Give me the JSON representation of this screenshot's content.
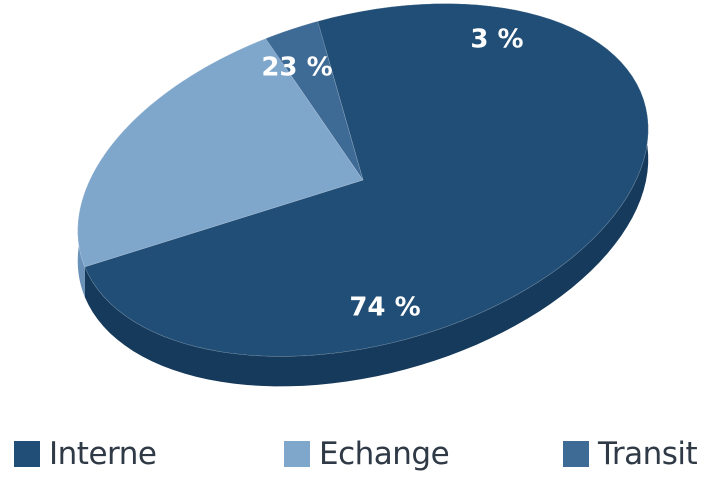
{
  "chart_data": {
    "type": "pie",
    "style": "3d-tilted",
    "slices": [
      {
        "name": "Interne",
        "value": 74,
        "label": "74 %",
        "color": "#214e76",
        "side_color": "#163a5b"
      },
      {
        "name": "Echange",
        "value": 23,
        "label": "23 %",
        "color": "#7fa7cc",
        "side_color": "#6a92b8"
      },
      {
        "name": "Transit",
        "value": 3,
        "label": "3 %",
        "color": "#3e6a96",
        "side_color": "#2d5680"
      }
    ],
    "legend_placement": "bottom"
  }
}
